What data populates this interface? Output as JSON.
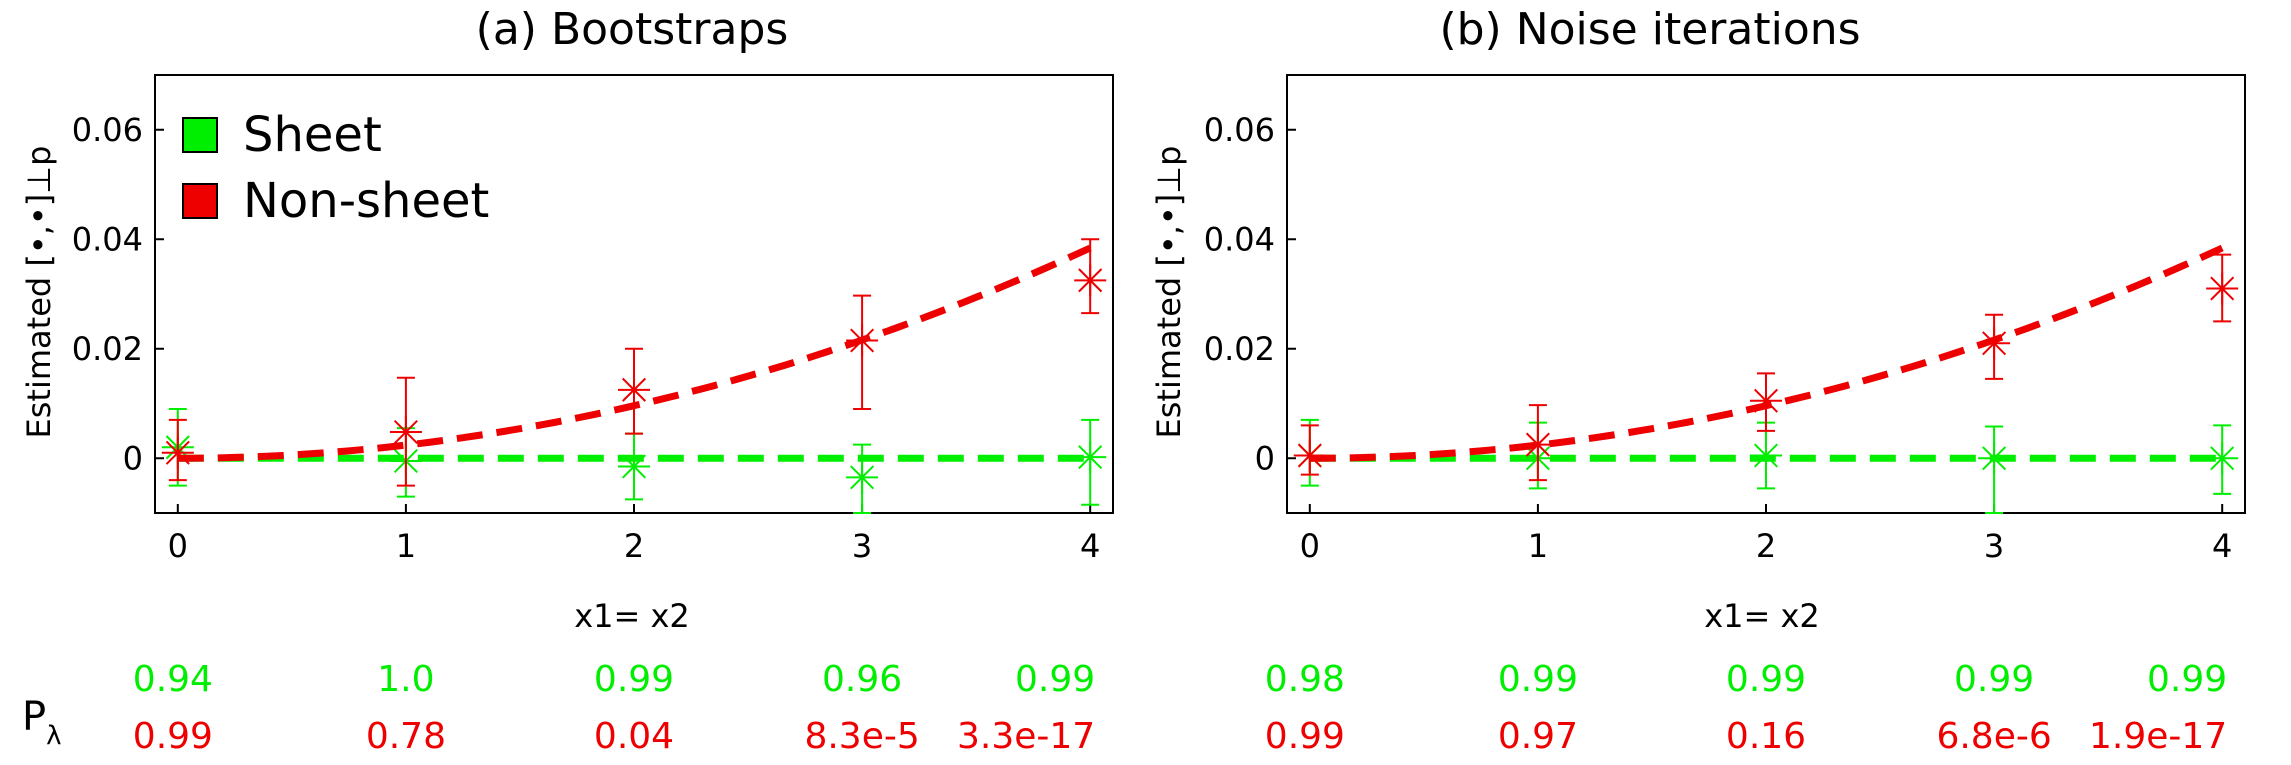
{
  "chart_data": [
    {
      "type": "line",
      "title": "(a) Bootstraps",
      "ylabel": "Estimated [•,•]⊥p",
      "xlabel": "x1= x2",
      "x": [
        0,
        1,
        2,
        3,
        4
      ],
      "xticks": [
        "0",
        "1",
        "2",
        "3",
        "4"
      ],
      "yticks": [
        "0",
        "0.02",
        "0.04",
        "0.06"
      ],
      "xlim": [
        -0.1,
        4.1
      ],
      "ylim": [
        -0.01,
        0.07
      ],
      "grid": false,
      "legend": {
        "placement": "top-left",
        "entries": [
          {
            "name": "Sheet",
            "color": "#00ee00"
          },
          {
            "name": "Non-sheet",
            "color": "#ee0000"
          }
        ]
      },
      "series": [
        {
          "name": "Sheet",
          "color": "#00ee00",
          "fit": [
            0,
            0,
            0,
            0,
            0
          ],
          "points": [
            0.002,
            -0.0005,
            -0.0015,
            -0.0035,
            0.0002
          ],
          "err_low": [
            -0.005,
            -0.007,
            -0.0075,
            -0.01,
            -0.0085
          ],
          "err_high": [
            0.009,
            0.0055,
            0.0045,
            0.0025,
            0.007
          ]
        },
        {
          "name": "Non-sheet",
          "color": "#ee0000",
          "fit": [
            0,
            0.0024,
            0.0096,
            0.0216,
            0.0384
          ],
          "points": [
            0.001,
            0.0048,
            0.0125,
            0.0215,
            0.0325
          ],
          "err_low": [
            -0.004,
            -0.005,
            0.0045,
            0.009,
            0.0265
          ],
          "err_high": [
            0.007,
            0.0147,
            0.02,
            0.0297,
            0.04
          ]
        }
      ],
      "p_values": {
        "label": "P",
        "subscript": "λ",
        "sheet": [
          "0.94",
          "1.0",
          "0.99",
          "0.96",
          "0.99"
        ],
        "nonsheet": [
          "0.99",
          "0.78",
          "0.04",
          "8.3e-5",
          "3.3e-17"
        ]
      }
    },
    {
      "type": "line",
      "title": "(b) Noise iterations",
      "ylabel": "Estimated [•,•]⊥p",
      "xlabel": "x1= x2",
      "x": [
        0,
        1,
        2,
        3,
        4
      ],
      "xticks": [
        "0",
        "1",
        "2",
        "3",
        "4"
      ],
      "yticks": [
        "0",
        "0.02",
        "0.04",
        "0.06"
      ],
      "xlim": [
        -0.1,
        4.1
      ],
      "ylim": [
        -0.01,
        0.07
      ],
      "grid": false,
      "series": [
        {
          "name": "Sheet",
          "color": "#00ee00",
          "fit": [
            0,
            0,
            0,
            0,
            0
          ],
          "points": [
            0.0005,
            0.0,
            0.0005,
            0.0,
            0.0
          ],
          "err_low": [
            -0.005,
            -0.0055,
            -0.0055,
            -0.01,
            -0.0065
          ],
          "err_high": [
            0.007,
            0.0065,
            0.0065,
            0.0058,
            0.006
          ]
        },
        {
          "name": "Non-sheet",
          "color": "#ee0000",
          "fit": [
            0,
            0.0024,
            0.0096,
            0.0216,
            0.0384
          ],
          "points": [
            0.0005,
            0.0025,
            0.0105,
            0.021,
            0.031
          ],
          "err_low": [
            -0.003,
            -0.004,
            0.005,
            0.0145,
            0.025
          ],
          "err_high": [
            0.006,
            0.0097,
            0.0155,
            0.0262,
            0.0372
          ]
        }
      ],
      "p_values": {
        "sheet": [
          "0.98",
          "0.99",
          "0.99",
          "0.99",
          "0.99"
        ],
        "nonsheet": [
          "0.99",
          "0.97",
          "0.16",
          "6.8e-6",
          "1.9e-17"
        ]
      }
    }
  ]
}
